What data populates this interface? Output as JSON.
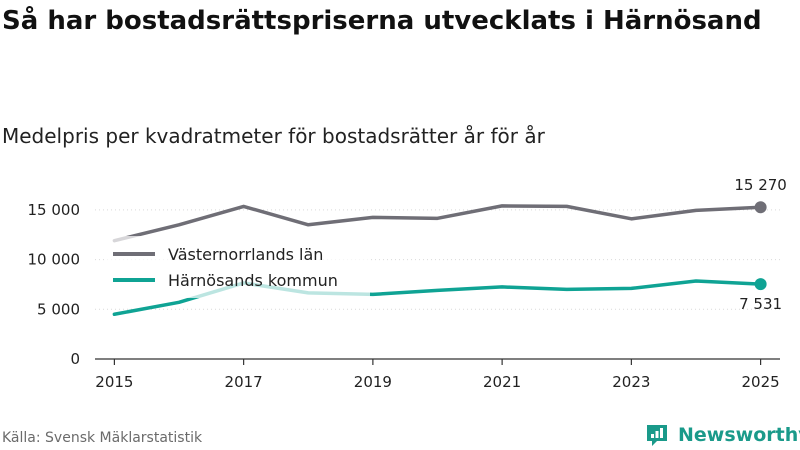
{
  "header": {
    "title": "Så har bostadsrättspriserna utvecklats i Härnösand",
    "subtitle": "Medelpris per kvadratmeter för bostadsrätter år för år"
  },
  "footer": {
    "source": "Källa: Svensk Mäklarstatistik",
    "brand": "Newsworthy"
  },
  "colors": {
    "vasternorrland": "#6f6e76",
    "harnosand": "#0fa394",
    "axis": "#333333",
    "brand": "#1a9a8a"
  },
  "chart_data": {
    "type": "line",
    "x": [
      2015,
      2016,
      2017,
      2018,
      2019,
      2020,
      2021,
      2022,
      2023,
      2024,
      2025
    ],
    "x_ticks": [
      "2015",
      "2017",
      "2019",
      "2021",
      "2023",
      "2025"
    ],
    "y_ticks": [
      "0",
      "5 000",
      "10 000",
      "15 000"
    ],
    "ylim": [
      0,
      17000
    ],
    "xlim": [
      2014.7,
      2025.3
    ],
    "legend_position": "middle-left",
    "series": [
      {
        "name": "Västernorrlands län",
        "values": [
          11900,
          13500,
          15350,
          13500,
          14250,
          14150,
          15400,
          15350,
          14100,
          14950,
          15270
        ],
        "end_label": "15 270"
      },
      {
        "name": "Härnösands kommun",
        "values": [
          4500,
          5700,
          7650,
          6650,
          6500,
          6900,
          7250,
          7000,
          7100,
          7850,
          7531
        ],
        "end_label": "7 531"
      }
    ]
  }
}
